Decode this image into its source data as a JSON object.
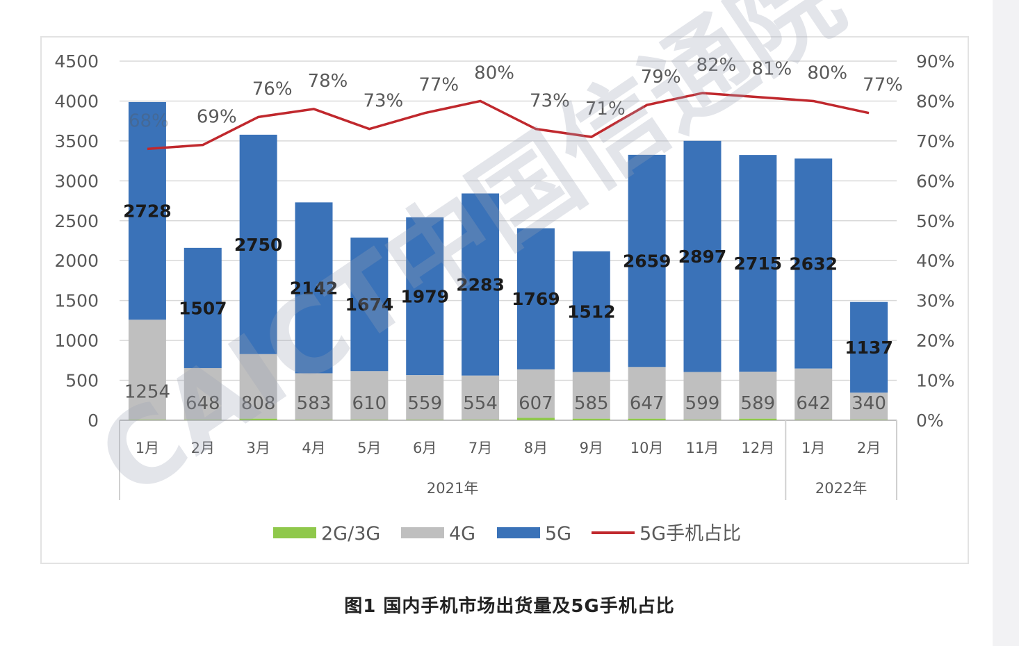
{
  "caption": "图1  国内手机市场出货量及5G手机占比",
  "watermark": "CAICT中国信通院",
  "colors": {
    "2g3g": "#8fc84b",
    "4g": "#bfbfbf",
    "5g": "#3a72b8",
    "share_line": "#c0282d",
    "grid": "#d9d9d9"
  },
  "chart_data": {
    "type": "bar",
    "stacked": true,
    "categories": [
      "1月",
      "2月",
      "3月",
      "4月",
      "5月",
      "6月",
      "7月",
      "8月",
      "9月",
      "10月",
      "11月",
      "12月",
      "1月",
      "2月"
    ],
    "year_groups": [
      {
        "label": "2021年",
        "count": 12
      },
      {
        "label": "2022年",
        "count": 2
      }
    ],
    "series": [
      {
        "name": "2G/3G",
        "values": [
          5,
          5,
          20,
          5,
          5,
          5,
          5,
          30,
          20,
          20,
          5,
          20,
          5,
          5
        ]
      },
      {
        "name": "4G",
        "values": [
          1254,
          648,
          808,
          583,
          610,
          559,
          554,
          607,
          585,
          647,
          599,
          589,
          642,
          340
        ]
      },
      {
        "name": "5G",
        "values": [
          2728,
          1507,
          2750,
          2142,
          1674,
          1979,
          2283,
          1769,
          1512,
          2659,
          2897,
          2715,
          2632,
          1137
        ]
      },
      {
        "name": "5G手机占比",
        "type": "line",
        "axis": "right",
        "values": [
          0.68,
          0.69,
          0.76,
          0.78,
          0.73,
          0.77,
          0.8,
          0.73,
          0.71,
          0.79,
          0.82,
          0.81,
          0.8,
          0.77
        ],
        "labels": [
          "68%",
          "69%",
          "76%",
          "78%",
          "73%",
          "77%",
          "80%",
          "73%",
          "71%",
          "79%",
          "82%",
          "81%",
          "80%",
          "77%"
        ]
      }
    ],
    "ylim": [
      0,
      4500
    ],
    "y_ticks": [
      "0",
      "500",
      "1000",
      "1500",
      "2000",
      "2500",
      "3000",
      "3500",
      "4000",
      "4500"
    ],
    "y2lim": [
      0,
      0.9
    ],
    "y2_ticks": [
      "0%",
      "10%",
      "20%",
      "30%",
      "40%",
      "50%",
      "60%",
      "70%",
      "80%",
      "90%"
    ],
    "grid": true,
    "legend_position": "bottom"
  }
}
